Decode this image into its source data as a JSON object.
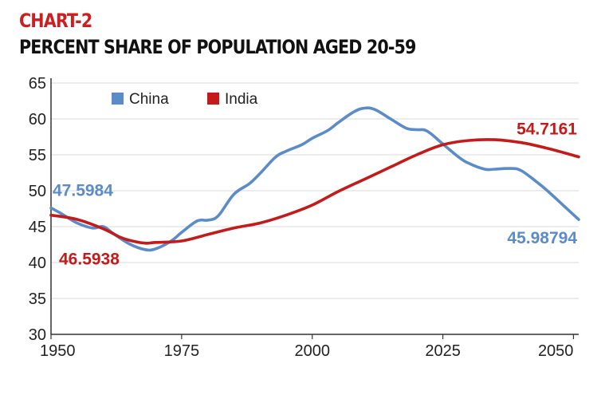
{
  "chart_data": {
    "type": "line",
    "kicker": "CHART-2",
    "title": "PERCENT SHARE OF POPULATION AGED 20-59",
    "xlabel": "",
    "ylabel": "",
    "xlim": [
      1950,
      2051
    ],
    "ylim": [
      30,
      65
    ],
    "x_ticks": [
      1950,
      1975,
      2000,
      2025,
      2050
    ],
    "y_ticks": [
      30,
      35,
      40,
      45,
      50,
      55,
      60,
      65
    ],
    "grid": "horizontal",
    "legend_position": "top-left",
    "colors": {
      "kicker": "#cc1f1f",
      "title": "#111111",
      "china": "#5b8cc9",
      "india": "#c41a1a",
      "grid": "#d9d9d9",
      "axis": "#333333"
    },
    "series": [
      {
        "name": "China",
        "key": "china",
        "x": [
          1950,
          1952,
          1955,
          1958,
          1960,
          1962,
          1965,
          1968,
          1970,
          1973,
          1975,
          1978,
          1980,
          1982,
          1985,
          1988,
          1990,
          1993,
          1995,
          1998,
          2000,
          2003,
          2005,
          2008,
          2010,
          2012,
          2015,
          2018,
          2020,
          2022,
          2025,
          2028,
          2030,
          2033,
          2035,
          2038,
          2040,
          2043,
          2045,
          2048,
          2051
        ],
        "values": [
          47.5984,
          46.8,
          45.5,
          44.8,
          45.0,
          44.0,
          42.6,
          41.8,
          41.9,
          43.0,
          44.2,
          45.8,
          45.9,
          46.5,
          49.5,
          51.0,
          52.4,
          54.7,
          55.5,
          56.4,
          57.3,
          58.4,
          59.5,
          61.0,
          61.5,
          61.3,
          60.0,
          58.7,
          58.5,
          58.3,
          56.5,
          54.7,
          53.8,
          53.0,
          53.0,
          53.1,
          52.8,
          51.2,
          50.0,
          48.0,
          45.98794
        ]
      },
      {
        "name": "India",
        "key": "india",
        "x": [
          1950,
          1955,
          1960,
          1963,
          1965,
          1968,
          1970,
          1975,
          1980,
          1985,
          1990,
          1995,
          2000,
          2005,
          2010,
          2015,
          2020,
          2025,
          2030,
          2035,
          2040,
          2045,
          2051
        ],
        "values": [
          46.5938,
          46.0,
          44.7,
          43.6,
          43.1,
          42.7,
          42.8,
          43.0,
          43.9,
          44.8,
          45.5,
          46.6,
          48.0,
          49.9,
          51.6,
          53.3,
          55.0,
          56.4,
          57.0,
          57.1,
          56.7,
          55.9,
          54.7161
        ]
      }
    ],
    "annotations": [
      {
        "text": "47.5984",
        "series": "china",
        "x": 1950,
        "y": 47.5984
      },
      {
        "text": "46.5938",
        "series": "india",
        "x": 1950,
        "y": 46.5938
      },
      {
        "text": "54.7161",
        "series": "india",
        "x": 2051,
        "y": 54.7161
      },
      {
        "text": "45.98794",
        "series": "china",
        "x": 2051,
        "y": 45.98794
      }
    ]
  }
}
